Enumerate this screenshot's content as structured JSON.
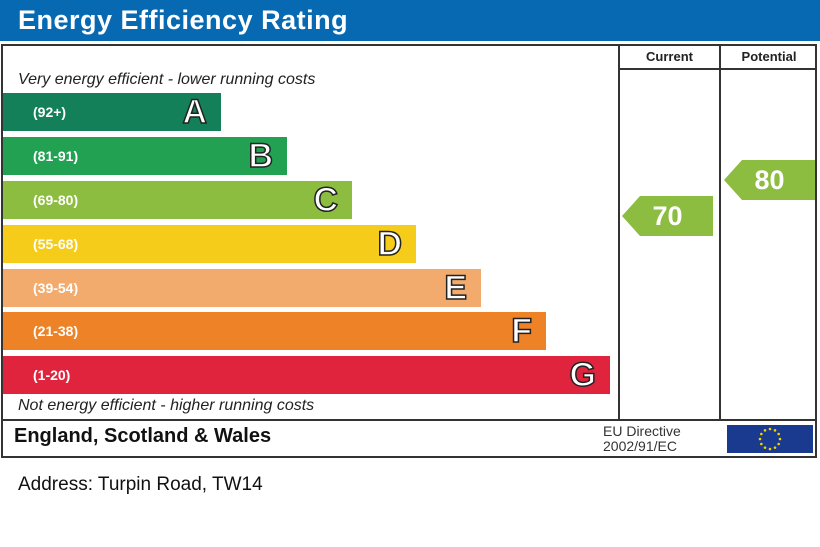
{
  "title": "Energy Efficiency Rating",
  "columns": {
    "current": "Current",
    "potential": "Potential"
  },
  "top_note": "Very energy efficient - lower running costs",
  "bottom_note": "Not energy efficient - higher running costs",
  "region": "England, Scotland & Wales",
  "eu_directive": {
    "line1": "EU Directive",
    "line2": "2002/91/EC"
  },
  "address": "Address: Turpin Road, TW14",
  "chart_data": {
    "type": "bar",
    "categories": [
      "A",
      "B",
      "C",
      "D",
      "E",
      "F",
      "G"
    ],
    "ranges": [
      "(92+)",
      "(81-91)",
      "(69-80)",
      "(55-68)",
      "(39-54)",
      "(21-38)",
      "(1-20)"
    ],
    "colors": [
      "#14805a",
      "#22a152",
      "#8cbd40",
      "#f6cc1a",
      "#f2ab6c",
      "#ee8227",
      "#e1243e"
    ],
    "current": {
      "label": "Current",
      "value": "70",
      "band": "C",
      "color": "#8cbd40"
    },
    "potential": {
      "label": "Potential",
      "value": "80",
      "band": "C",
      "color": "#8cbd40"
    }
  }
}
